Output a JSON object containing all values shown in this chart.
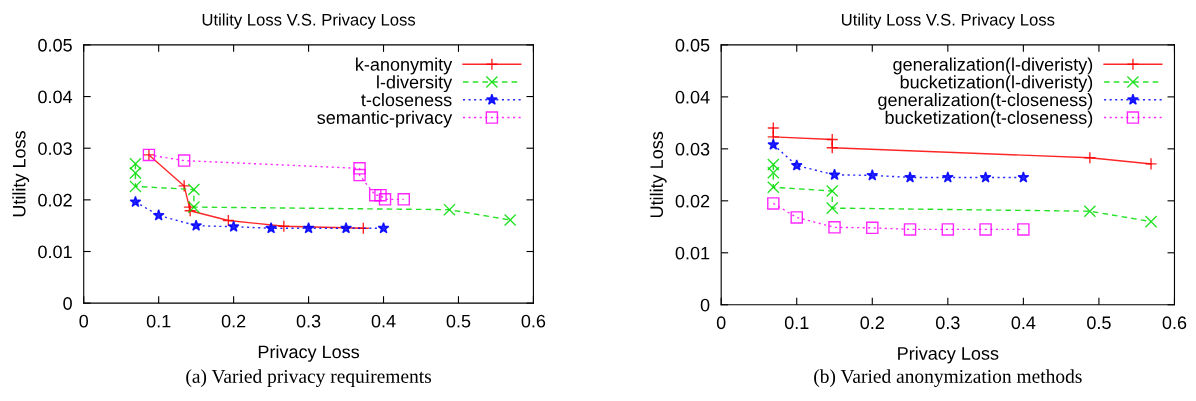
{
  "chart_data": [
    {
      "type": "line",
      "title": "Utility Loss V.S. Privacy Loss",
      "xlabel": "Privacy Loss",
      "ylabel": "Utility Loss",
      "annotations": [
        "(a) Varied privacy requirements"
      ],
      "xlim": [
        0,
        0.6
      ],
      "xticks": [
        0,
        0.1,
        0.2,
        0.3,
        0.4,
        0.5,
        0.6
      ],
      "ylim": [
        0,
        0.05
      ],
      "yticks": [
        0,
        0.01,
        0.02,
        0.03,
        0.04,
        0.05
      ],
      "grid": false,
      "legend": "top right",
      "series": [
        {
          "name": "k-anonymity",
          "color": "#ff0000",
          "marker": "plus",
          "line_style": "solid",
          "x": [
            0.087,
            0.134,
            0.141,
            0.142,
            0.193,
            0.267,
            0.373
          ],
          "values": [
            0.0287,
            0.0227,
            0.0186,
            0.0179,
            0.016,
            0.0149,
            0.0145
          ]
        },
        {
          "name": "l-diversity",
          "color": "#00dd00",
          "marker": "cross",
          "line_style": "dashed",
          "x": [
            0.069,
            0.069,
            0.069,
            0.147,
            0.147,
            0.488,
            0.569
          ],
          "values": [
            0.027,
            0.0252,
            0.0226,
            0.022,
            0.0186,
            0.0181,
            0.0161
          ]
        },
        {
          "name": "t-closeness",
          "color": "#0000ff",
          "marker": "star",
          "line_style": "dotted",
          "x": [
            0.069,
            0.1,
            0.15,
            0.2,
            0.25,
            0.3,
            0.35,
            0.4
          ],
          "values": [
            0.0196,
            0.017,
            0.015,
            0.0148,
            0.0145,
            0.0145,
            0.0145,
            0.0145
          ]
        },
        {
          "name": "semantic-privacy",
          "color": "#ff00ff",
          "marker": "square",
          "line_style": "dotted",
          "x": [
            0.087,
            0.134,
            0.368,
            0.368,
            0.389,
            0.396,
            0.402,
            0.427
          ],
          "values": [
            0.0287,
            0.0276,
            0.0261,
            0.0248,
            0.0209,
            0.0209,
            0.0201,
            0.0201
          ]
        }
      ]
    },
    {
      "type": "line",
      "title": "Utility Loss V.S. Privacy Loss",
      "xlabel": "Privacy Loss",
      "ylabel": "Utility Loss",
      "annotations": [
        "(b) Varied anonymization methods"
      ],
      "xlim": [
        0,
        0.6
      ],
      "xticks": [
        0,
        0.1,
        0.2,
        0.3,
        0.4,
        0.5,
        0.6
      ],
      "ylim": [
        0,
        0.05
      ],
      "yticks": [
        0,
        0.01,
        0.02,
        0.03,
        0.04,
        0.05
      ],
      "grid": false,
      "legend": "top right",
      "series": [
        {
          "name": "generalization(l-diveristy)",
          "color": "#ff0000",
          "marker": "plus",
          "line_style": "solid",
          "x": [
            0.069,
            0.069,
            0.147,
            0.147,
            0.488,
            0.569
          ],
          "values": [
            0.034,
            0.0323,
            0.0318,
            0.0302,
            0.0283,
            0.0271
          ]
        },
        {
          "name": "bucketization(l-diveristy)",
          "color": "#00dd00",
          "marker": "cross",
          "line_style": "dashed",
          "x": [
            0.069,
            0.069,
            0.069,
            0.147,
            0.147,
            0.488,
            0.569
          ],
          "values": [
            0.027,
            0.0254,
            0.0226,
            0.0219,
            0.0186,
            0.018,
            0.016
          ]
        },
        {
          "name": "generalization(t-closeness)",
          "color": "#0000ff",
          "marker": "star",
          "line_style": "dotted",
          "x": [
            0.069,
            0.1,
            0.15,
            0.2,
            0.25,
            0.3,
            0.35,
            0.4
          ],
          "values": [
            0.0308,
            0.0268,
            0.025,
            0.0249,
            0.0245,
            0.0245,
            0.0245,
            0.0245
          ]
        },
        {
          "name": "bucketization(t-closeness)",
          "color": "#ff00ff",
          "marker": "square",
          "line_style": "dotted",
          "x": [
            0.069,
            0.1,
            0.15,
            0.2,
            0.25,
            0.3,
            0.35,
            0.4
          ],
          "values": [
            0.0195,
            0.0168,
            0.0149,
            0.0148,
            0.0145,
            0.0145,
            0.0145,
            0.0145
          ]
        }
      ]
    }
  ]
}
